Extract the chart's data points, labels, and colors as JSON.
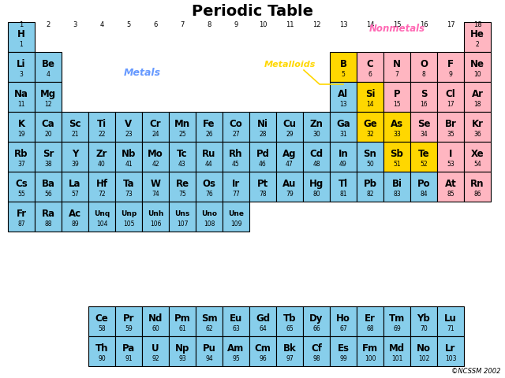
{
  "title": "Periodic Table",
  "background_color": "#ffffff",
  "colors": {
    "metal": "#87CEEB",
    "nonmetal": "#FFB6C1",
    "metalloid": "#FFD700",
    "label_metals": "#6699FF",
    "label_nonmetals": "#FF69B4",
    "label_metalloids": "#FFD700"
  },
  "elements": [
    {
      "sym": "H",
      "num": "1",
      "row": 0,
      "col": 0,
      "type": "metal"
    },
    {
      "sym": "He",
      "num": "2",
      "row": 0,
      "col": 17,
      "type": "nonmetal"
    },
    {
      "sym": "Li",
      "num": "3",
      "row": 1,
      "col": 0,
      "type": "metal"
    },
    {
      "sym": "Be",
      "num": "4",
      "row": 1,
      "col": 1,
      "type": "metal"
    },
    {
      "sym": "B",
      "num": "5",
      "row": 1,
      "col": 12,
      "type": "metalloid"
    },
    {
      "sym": "C",
      "num": "6",
      "row": 1,
      "col": 13,
      "type": "nonmetal"
    },
    {
      "sym": "N",
      "num": "7",
      "row": 1,
      "col": 14,
      "type": "nonmetal"
    },
    {
      "sym": "O",
      "num": "8",
      "row": 1,
      "col": 15,
      "type": "nonmetal"
    },
    {
      "sym": "F",
      "num": "9",
      "row": 1,
      "col": 16,
      "type": "nonmetal"
    },
    {
      "sym": "Ne",
      "num": "10",
      "row": 1,
      "col": 17,
      "type": "nonmetal"
    },
    {
      "sym": "Na",
      "num": "11",
      "row": 2,
      "col": 0,
      "type": "metal"
    },
    {
      "sym": "Mg",
      "num": "12",
      "row": 2,
      "col": 1,
      "type": "metal"
    },
    {
      "sym": "Al",
      "num": "13",
      "row": 2,
      "col": 12,
      "type": "metal"
    },
    {
      "sym": "Si",
      "num": "14",
      "row": 2,
      "col": 13,
      "type": "metalloid"
    },
    {
      "sym": "P",
      "num": "15",
      "row": 2,
      "col": 14,
      "type": "nonmetal"
    },
    {
      "sym": "S",
      "num": "16",
      "row": 2,
      "col": 15,
      "type": "nonmetal"
    },
    {
      "sym": "Cl",
      "num": "17",
      "row": 2,
      "col": 16,
      "type": "nonmetal"
    },
    {
      "sym": "Ar",
      "num": "18",
      "row": 2,
      "col": 17,
      "type": "nonmetal"
    },
    {
      "sym": "K",
      "num": "19",
      "row": 3,
      "col": 0,
      "type": "metal"
    },
    {
      "sym": "Ca",
      "num": "20",
      "row": 3,
      "col": 1,
      "type": "metal"
    },
    {
      "sym": "Sc",
      "num": "21",
      "row": 3,
      "col": 2,
      "type": "metal"
    },
    {
      "sym": "Ti",
      "num": "22",
      "row": 3,
      "col": 3,
      "type": "metal"
    },
    {
      "sym": "V",
      "num": "23",
      "row": 3,
      "col": 4,
      "type": "metal"
    },
    {
      "sym": "Cr",
      "num": "24",
      "row": 3,
      "col": 5,
      "type": "metal"
    },
    {
      "sym": "Mn",
      "num": "25",
      "row": 3,
      "col": 6,
      "type": "metal"
    },
    {
      "sym": "Fe",
      "num": "26",
      "row": 3,
      "col": 7,
      "type": "metal"
    },
    {
      "sym": "Co",
      "num": "27",
      "row": 3,
      "col": 8,
      "type": "metal"
    },
    {
      "sym": "Ni",
      "num": "28",
      "row": 3,
      "col": 9,
      "type": "metal"
    },
    {
      "sym": "Cu",
      "num": "29",
      "row": 3,
      "col": 10,
      "type": "metal"
    },
    {
      "sym": "Zn",
      "num": "30",
      "row": 3,
      "col": 11,
      "type": "metal"
    },
    {
      "sym": "Ga",
      "num": "31",
      "row": 3,
      "col": 12,
      "type": "metal"
    },
    {
      "sym": "Ge",
      "num": "32",
      "row": 3,
      "col": 13,
      "type": "metalloid"
    },
    {
      "sym": "As",
      "num": "33",
      "row": 3,
      "col": 14,
      "type": "metalloid"
    },
    {
      "sym": "Se",
      "num": "34",
      "row": 3,
      "col": 15,
      "type": "nonmetal"
    },
    {
      "sym": "Br",
      "num": "35",
      "row": 3,
      "col": 16,
      "type": "nonmetal"
    },
    {
      "sym": "Kr",
      "num": "36",
      "row": 3,
      "col": 17,
      "type": "nonmetal"
    },
    {
      "sym": "Rb",
      "num": "37",
      "row": 4,
      "col": 0,
      "type": "metal"
    },
    {
      "sym": "Sr",
      "num": "38",
      "row": 4,
      "col": 1,
      "type": "metal"
    },
    {
      "sym": "Y",
      "num": "39",
      "row": 4,
      "col": 2,
      "type": "metal"
    },
    {
      "sym": "Zr",
      "num": "40",
      "row": 4,
      "col": 3,
      "type": "metal"
    },
    {
      "sym": "Nb",
      "num": "41",
      "row": 4,
      "col": 4,
      "type": "metal"
    },
    {
      "sym": "Mo",
      "num": "42",
      "row": 4,
      "col": 5,
      "type": "metal"
    },
    {
      "sym": "Tc",
      "num": "43",
      "row": 4,
      "col": 6,
      "type": "metal"
    },
    {
      "sym": "Ru",
      "num": "44",
      "row": 4,
      "col": 7,
      "type": "metal"
    },
    {
      "sym": "Rh",
      "num": "45",
      "row": 4,
      "col": 8,
      "type": "metal"
    },
    {
      "sym": "Pd",
      "num": "46",
      "row": 4,
      "col": 9,
      "type": "metal"
    },
    {
      "sym": "Ag",
      "num": "47",
      "row": 4,
      "col": 10,
      "type": "metal"
    },
    {
      "sym": "Cd",
      "num": "48",
      "row": 4,
      "col": 11,
      "type": "metal"
    },
    {
      "sym": "In",
      "num": "49",
      "row": 4,
      "col": 12,
      "type": "metal"
    },
    {
      "sym": "Sn",
      "num": "50",
      "row": 4,
      "col": 13,
      "type": "metal"
    },
    {
      "sym": "Sb",
      "num": "51",
      "row": 4,
      "col": 14,
      "type": "metalloid"
    },
    {
      "sym": "Te",
      "num": "52",
      "row": 4,
      "col": 15,
      "type": "metalloid"
    },
    {
      "sym": "I",
      "num": "53",
      "row": 4,
      "col": 16,
      "type": "nonmetal"
    },
    {
      "sym": "Xe",
      "num": "54",
      "row": 4,
      "col": 17,
      "type": "nonmetal"
    },
    {
      "sym": "Cs",
      "num": "55",
      "row": 5,
      "col": 0,
      "type": "metal"
    },
    {
      "sym": "Ba",
      "num": "56",
      "row": 5,
      "col": 1,
      "type": "metal"
    },
    {
      "sym": "La",
      "num": "57",
      "row": 5,
      "col": 2,
      "type": "metal"
    },
    {
      "sym": "Hf",
      "num": "72",
      "row": 5,
      "col": 3,
      "type": "metal"
    },
    {
      "sym": "Ta",
      "num": "73",
      "row": 5,
      "col": 4,
      "type": "metal"
    },
    {
      "sym": "W",
      "num": "74",
      "row": 5,
      "col": 5,
      "type": "metal"
    },
    {
      "sym": "Re",
      "num": "75",
      "row": 5,
      "col": 6,
      "type": "metal"
    },
    {
      "sym": "Os",
      "num": "76",
      "row": 5,
      "col": 7,
      "type": "metal"
    },
    {
      "sym": "Ir",
      "num": "77",
      "row": 5,
      "col": 8,
      "type": "metal"
    },
    {
      "sym": "Pt",
      "num": "78",
      "row": 5,
      "col": 9,
      "type": "metal"
    },
    {
      "sym": "Au",
      "num": "79",
      "row": 5,
      "col": 10,
      "type": "metal"
    },
    {
      "sym": "Hg",
      "num": "80",
      "row": 5,
      "col": 11,
      "type": "metal"
    },
    {
      "sym": "Tl",
      "num": "81",
      "row": 5,
      "col": 12,
      "type": "metal"
    },
    {
      "sym": "Pb",
      "num": "82",
      "row": 5,
      "col": 13,
      "type": "metal"
    },
    {
      "sym": "Bi",
      "num": "83",
      "row": 5,
      "col": 14,
      "type": "metal"
    },
    {
      "sym": "Po",
      "num": "84",
      "row": 5,
      "col": 15,
      "type": "metal"
    },
    {
      "sym": "At",
      "num": "85",
      "row": 5,
      "col": 16,
      "type": "nonmetal"
    },
    {
      "sym": "Rn",
      "num": "86",
      "row": 5,
      "col": 17,
      "type": "nonmetal"
    },
    {
      "sym": "Fr",
      "num": "87",
      "row": 6,
      "col": 0,
      "type": "metal"
    },
    {
      "sym": "Ra",
      "num": "88",
      "row": 6,
      "col": 1,
      "type": "metal"
    },
    {
      "sym": "Ac",
      "num": "89",
      "row": 6,
      "col": 2,
      "type": "metal"
    },
    {
      "sym": "Unq",
      "num": "104",
      "row": 6,
      "col": 3,
      "type": "metal"
    },
    {
      "sym": "Unp",
      "num": "105",
      "row": 6,
      "col": 4,
      "type": "metal"
    },
    {
      "sym": "Unh",
      "num": "106",
      "row": 6,
      "col": 5,
      "type": "metal"
    },
    {
      "sym": "Uns",
      "num": "107",
      "row": 6,
      "col": 6,
      "type": "metal"
    },
    {
      "sym": "Uno",
      "num": "108",
      "row": 6,
      "col": 7,
      "type": "metal"
    },
    {
      "sym": "Une",
      "num": "109",
      "row": 6,
      "col": 8,
      "type": "metal"
    },
    {
      "sym": "Ce",
      "num": "58",
      "row": 8,
      "col": 3,
      "type": "metal"
    },
    {
      "sym": "Pr",
      "num": "59",
      "row": 8,
      "col": 4,
      "type": "metal"
    },
    {
      "sym": "Nd",
      "num": "60",
      "row": 8,
      "col": 5,
      "type": "metal"
    },
    {
      "sym": "Pm",
      "num": "61",
      "row": 8,
      "col": 6,
      "type": "metal"
    },
    {
      "sym": "Sm",
      "num": "62",
      "row": 8,
      "col": 7,
      "type": "metal"
    },
    {
      "sym": "Eu",
      "num": "63",
      "row": 8,
      "col": 8,
      "type": "metal"
    },
    {
      "sym": "Gd",
      "num": "64",
      "row": 8,
      "col": 9,
      "type": "metal"
    },
    {
      "sym": "Tb",
      "num": "65",
      "row": 8,
      "col": 10,
      "type": "metal"
    },
    {
      "sym": "Dy",
      "num": "66",
      "row": 8,
      "col": 11,
      "type": "metal"
    },
    {
      "sym": "Ho",
      "num": "67",
      "row": 8,
      "col": 12,
      "type": "metal"
    },
    {
      "sym": "Er",
      "num": "68",
      "row": 8,
      "col": 13,
      "type": "metal"
    },
    {
      "sym": "Tm",
      "num": "69",
      "row": 8,
      "col": 14,
      "type": "metal"
    },
    {
      "sym": "Yb",
      "num": "70",
      "row": 8,
      "col": 15,
      "type": "metal"
    },
    {
      "sym": "Lu",
      "num": "71",
      "row": 8,
      "col": 16,
      "type": "metal"
    },
    {
      "sym": "Th",
      "num": "90",
      "row": 9,
      "col": 3,
      "type": "metal"
    },
    {
      "sym": "Pa",
      "num": "91",
      "row": 9,
      "col": 4,
      "type": "metal"
    },
    {
      "sym": "U",
      "num": "92",
      "row": 9,
      "col": 5,
      "type": "metal"
    },
    {
      "sym": "Np",
      "num": "93",
      "row": 9,
      "col": 6,
      "type": "metal"
    },
    {
      "sym": "Pu",
      "num": "94",
      "row": 9,
      "col": 7,
      "type": "metal"
    },
    {
      "sym": "Am",
      "num": "95",
      "row": 9,
      "col": 8,
      "type": "metal"
    },
    {
      "sym": "Cm",
      "num": "96",
      "row": 9,
      "col": 9,
      "type": "metal"
    },
    {
      "sym": "Bk",
      "num": "97",
      "row": 9,
      "col": 10,
      "type": "metal"
    },
    {
      "sym": "Cf",
      "num": "98",
      "row": 9,
      "col": 11,
      "type": "metal"
    },
    {
      "sym": "Es",
      "num": "99",
      "row": 9,
      "col": 12,
      "type": "metal"
    },
    {
      "sym": "Fm",
      "num": "100",
      "row": 9,
      "col": 13,
      "type": "metal"
    },
    {
      "sym": "Md",
      "num": "101",
      "row": 9,
      "col": 14,
      "type": "metal"
    },
    {
      "sym": "No",
      "num": "102",
      "row": 9,
      "col": 15,
      "type": "metal"
    },
    {
      "sym": "Lr",
      "num": "103",
      "row": 9,
      "col": 16,
      "type": "metal"
    }
  ],
  "copyright": "©NCSSM 2002"
}
